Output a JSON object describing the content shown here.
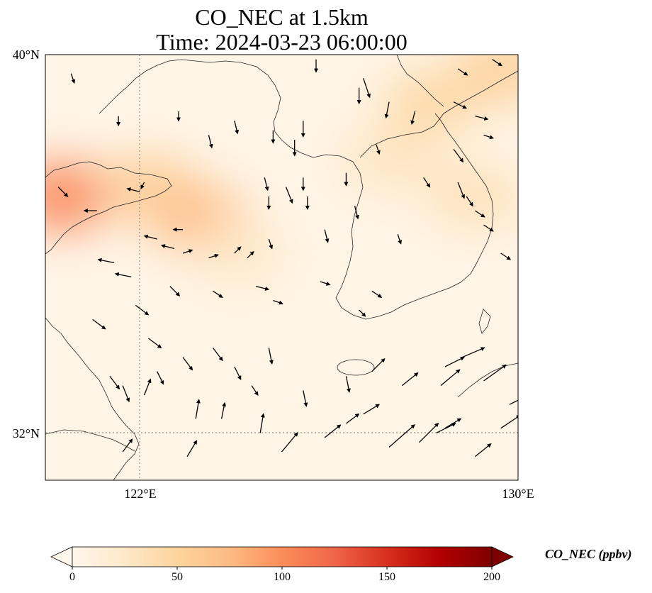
{
  "title": {
    "line1": "CO_NEC at 1.5km",
    "line2": "Time: 2024-03-23 06:00:00"
  },
  "map": {
    "extent": {
      "lon_min": 119,
      "lon_max": 130,
      "lat_min": 31,
      "lat_max": 40
    },
    "gridlines": {
      "lon": 122,
      "lat": 32
    },
    "lat_labels": [
      "40°N",
      "32°N"
    ],
    "lon_labels": [
      "122°E",
      "130°E"
    ],
    "hotspots": [
      {
        "lon": 119.4,
        "lat": 37.0,
        "value": 105
      },
      {
        "lon": 121.4,
        "lat": 37.2,
        "value": 55
      },
      {
        "lon": 122.6,
        "lat": 36.5,
        "value": 75
      },
      {
        "lon": 128.0,
        "lat": 39.0,
        "value": 45
      },
      {
        "lon": 129.7,
        "lat": 39.7,
        "value": 55
      },
      {
        "lon": 129.0,
        "lat": 37.0,
        "value": 35
      },
      {
        "lon": 127.0,
        "lat": 37.8,
        "value": 30
      },
      {
        "lon": 123.5,
        "lat": 35.8,
        "value": 25
      }
    ],
    "wind_vectors": [
      [
        121.3,
        32.8,
        0.2,
        0.5
      ],
      [
        120.8,
        31.6,
        0.3,
        0.4
      ],
      [
        122.3,
        31.5,
        0.3,
        0.5
      ],
      [
        122.5,
        32.3,
        0.1,
        0.6
      ],
      [
        123.1,
        32.3,
        0.1,
        0.5
      ],
      [
        124.0,
        32.0,
        0.1,
        0.6
      ],
      [
        124.5,
        31.6,
        0.5,
        0.6
      ],
      [
        125.5,
        31.9,
        0.5,
        0.4
      ],
      [
        126.0,
        32.2,
        0.4,
        0.3
      ],
      [
        126.4,
        32.4,
        0.5,
        0.3
      ],
      [
        127.0,
        31.7,
        0.8,
        0.7
      ],
      [
        127.7,
        31.8,
        0.6,
        0.6
      ],
      [
        128.1,
        32.0,
        0.6,
        0.3
      ],
      [
        128.3,
        32.1,
        0.5,
        0.3
      ],
      [
        129.0,
        31.5,
        0.5,
        0.4
      ],
      [
        129.6,
        32.1,
        0.6,
        0.4
      ],
      [
        129.8,
        32.6,
        0.4,
        0.2
      ],
      [
        129.2,
        33.1,
        0.7,
        0.5
      ],
      [
        128.2,
        33.0,
        0.6,
        0.5
      ],
      [
        127.3,
        33.0,
        0.5,
        0.4
      ],
      [
        126.6,
        33.3,
        0.4,
        0.4
      ],
      [
        128.3,
        33.4,
        0.6,
        0.3
      ],
      [
        128.7,
        33.6,
        0.7,
        0.3
      ],
      [
        120.5,
        33.2,
        0.3,
        -0.4
      ],
      [
        120.8,
        33.0,
        0.2,
        -0.5
      ],
      [
        121.6,
        33.3,
        0.2,
        -0.4
      ],
      [
        122.2,
        33.6,
        0.3,
        -0.4
      ],
      [
        122.9,
        33.8,
        0.3,
        -0.4
      ],
      [
        123.4,
        33.4,
        0.2,
        -0.4
      ],
      [
        123.8,
        33.0,
        0.2,
        -0.3
      ],
      [
        124.2,
        33.8,
        0.1,
        -0.5
      ],
      [
        125.0,
        32.9,
        0.1,
        -0.5
      ],
      [
        126.0,
        33.2,
        0.1,
        -0.5
      ],
      [
        121.4,
        34.0,
        0.4,
        -0.3
      ],
      [
        120.1,
        34.4,
        0.4,
        -0.3
      ],
      [
        121.1,
        34.7,
        0.4,
        -0.3
      ],
      [
        121.9,
        35.1,
        0.3,
        -0.3
      ],
      [
        122.9,
        35.0,
        0.3,
        -0.2
      ],
      [
        123.9,
        35.1,
        0.4,
        -0.1
      ],
      [
        124.3,
        34.8,
        0.3,
        -0.1
      ],
      [
        125.4,
        35.2,
        0.3,
        -0.1
      ],
      [
        126.6,
        35.0,
        0.3,
        -0.2
      ],
      [
        126.3,
        34.6,
        0.2,
        -0.2
      ],
      [
        120.6,
        35.6,
        -0.5,
        0.1
      ],
      [
        121.0,
        35.3,
        -0.5,
        0.1
      ],
      [
        122.2,
        35.8,
        0.3,
        0.1
      ],
      [
        122.8,
        35.7,
        0.3,
        0.1
      ],
      [
        123.4,
        35.8,
        0.2,
        0.2
      ],
      [
        123.7,
        35.7,
        0.2,
        0.2
      ],
      [
        121.6,
        36.1,
        -0.4,
        0.1
      ],
      [
        122.0,
        35.9,
        -0.4,
        0.1
      ],
      [
        124.2,
        36.1,
        0.1,
        -0.3
      ],
      [
        125.5,
        36.3,
        0.1,
        -0.4
      ],
      [
        126.2,
        36.8,
        0.1,
        -0.4
      ],
      [
        127.2,
        36.2,
        0.1,
        -0.3
      ],
      [
        128.6,
        37.3,
        0.2,
        -0.5
      ],
      [
        128.8,
        37.0,
        0.2,
        -0.3
      ],
      [
        129.0,
        36.7,
        0.3,
        -0.2
      ],
      [
        129.2,
        36.4,
        0.3,
        -0.2
      ],
      [
        129.6,
        35.8,
        0.3,
        -0.2
      ],
      [
        120.2,
        36.7,
        -0.4,
        0.0
      ],
      [
        121.2,
        37.1,
        -0.4,
        0.1
      ],
      [
        122.2,
        36.3,
        -0.3,
        0.0
      ],
      [
        124.2,
        37.0,
        0.0,
        -0.4
      ],
      [
        125.0,
        37.4,
        0.0,
        -0.4
      ],
      [
        126.0,
        37.5,
        0.0,
        -0.4
      ],
      [
        126.7,
        38.1,
        0.1,
        -0.3
      ],
      [
        127.8,
        37.4,
        0.2,
        -0.3
      ],
      [
        128.5,
        38.0,
        0.3,
        -0.4
      ],
      [
        124.3,
        38.4,
        0.0,
        -0.4
      ],
      [
        124.8,
        38.2,
        0.0,
        -0.5
      ],
      [
        125.0,
        38.6,
        0.0,
        -0.5
      ],
      [
        126.3,
        39.3,
        0.0,
        -0.5
      ],
      [
        127.0,
        39.0,
        -0.1,
        -0.5
      ],
      [
        127.6,
        38.8,
        -0.1,
        -0.4
      ],
      [
        128.5,
        39.0,
        0.4,
        -0.2
      ],
      [
        129.0,
        38.7,
        0.4,
        -0.1
      ],
      [
        129.2,
        38.3,
        0.3,
        -0.1
      ],
      [
        128.6,
        39.7,
        0.3,
        -0.2
      ],
      [
        129.4,
        39.9,
        0.3,
        -0.2
      ],
      [
        125.3,
        39.9,
        0.0,
        -0.4
      ],
      [
        126.4,
        39.5,
        0.2,
        -0.6
      ],
      [
        122.1,
        38.8,
        0.0,
        -0.3
      ],
      [
        122.8,
        38.3,
        0.1,
        -0.4
      ],
      [
        123.4,
        38.6,
        0.1,
        -0.4
      ],
      [
        120.7,
        38.7,
        0.0,
        -0.3
      ],
      [
        119.6,
        39.6,
        0.1,
        -0.3
      ],
      [
        119.3,
        37.2,
        0.3,
        -0.3
      ],
      [
        121.3,
        37.3,
        -0.1,
        -0.2
      ],
      [
        124.1,
        37.4,
        0.1,
        -0.4
      ],
      [
        124.6,
        37.2,
        0.2,
        -0.5
      ],
      [
        125.1,
        37.0,
        0.0,
        -0.4
      ]
    ]
  },
  "colorbar": {
    "label": "CO_NEC (ppbv)",
    "min": 0,
    "max": 200,
    "ticks": [
      "0",
      "50",
      "100",
      "150",
      "200"
    ],
    "tick_values": [
      0,
      50,
      100,
      150,
      200
    ],
    "cmap": [
      "#fff7ec",
      "#fee8c8",
      "#fdd49e",
      "#fdbb84",
      "#fc8d59",
      "#ef6548",
      "#d7301f",
      "#b30000",
      "#7f0000"
    ]
  }
}
